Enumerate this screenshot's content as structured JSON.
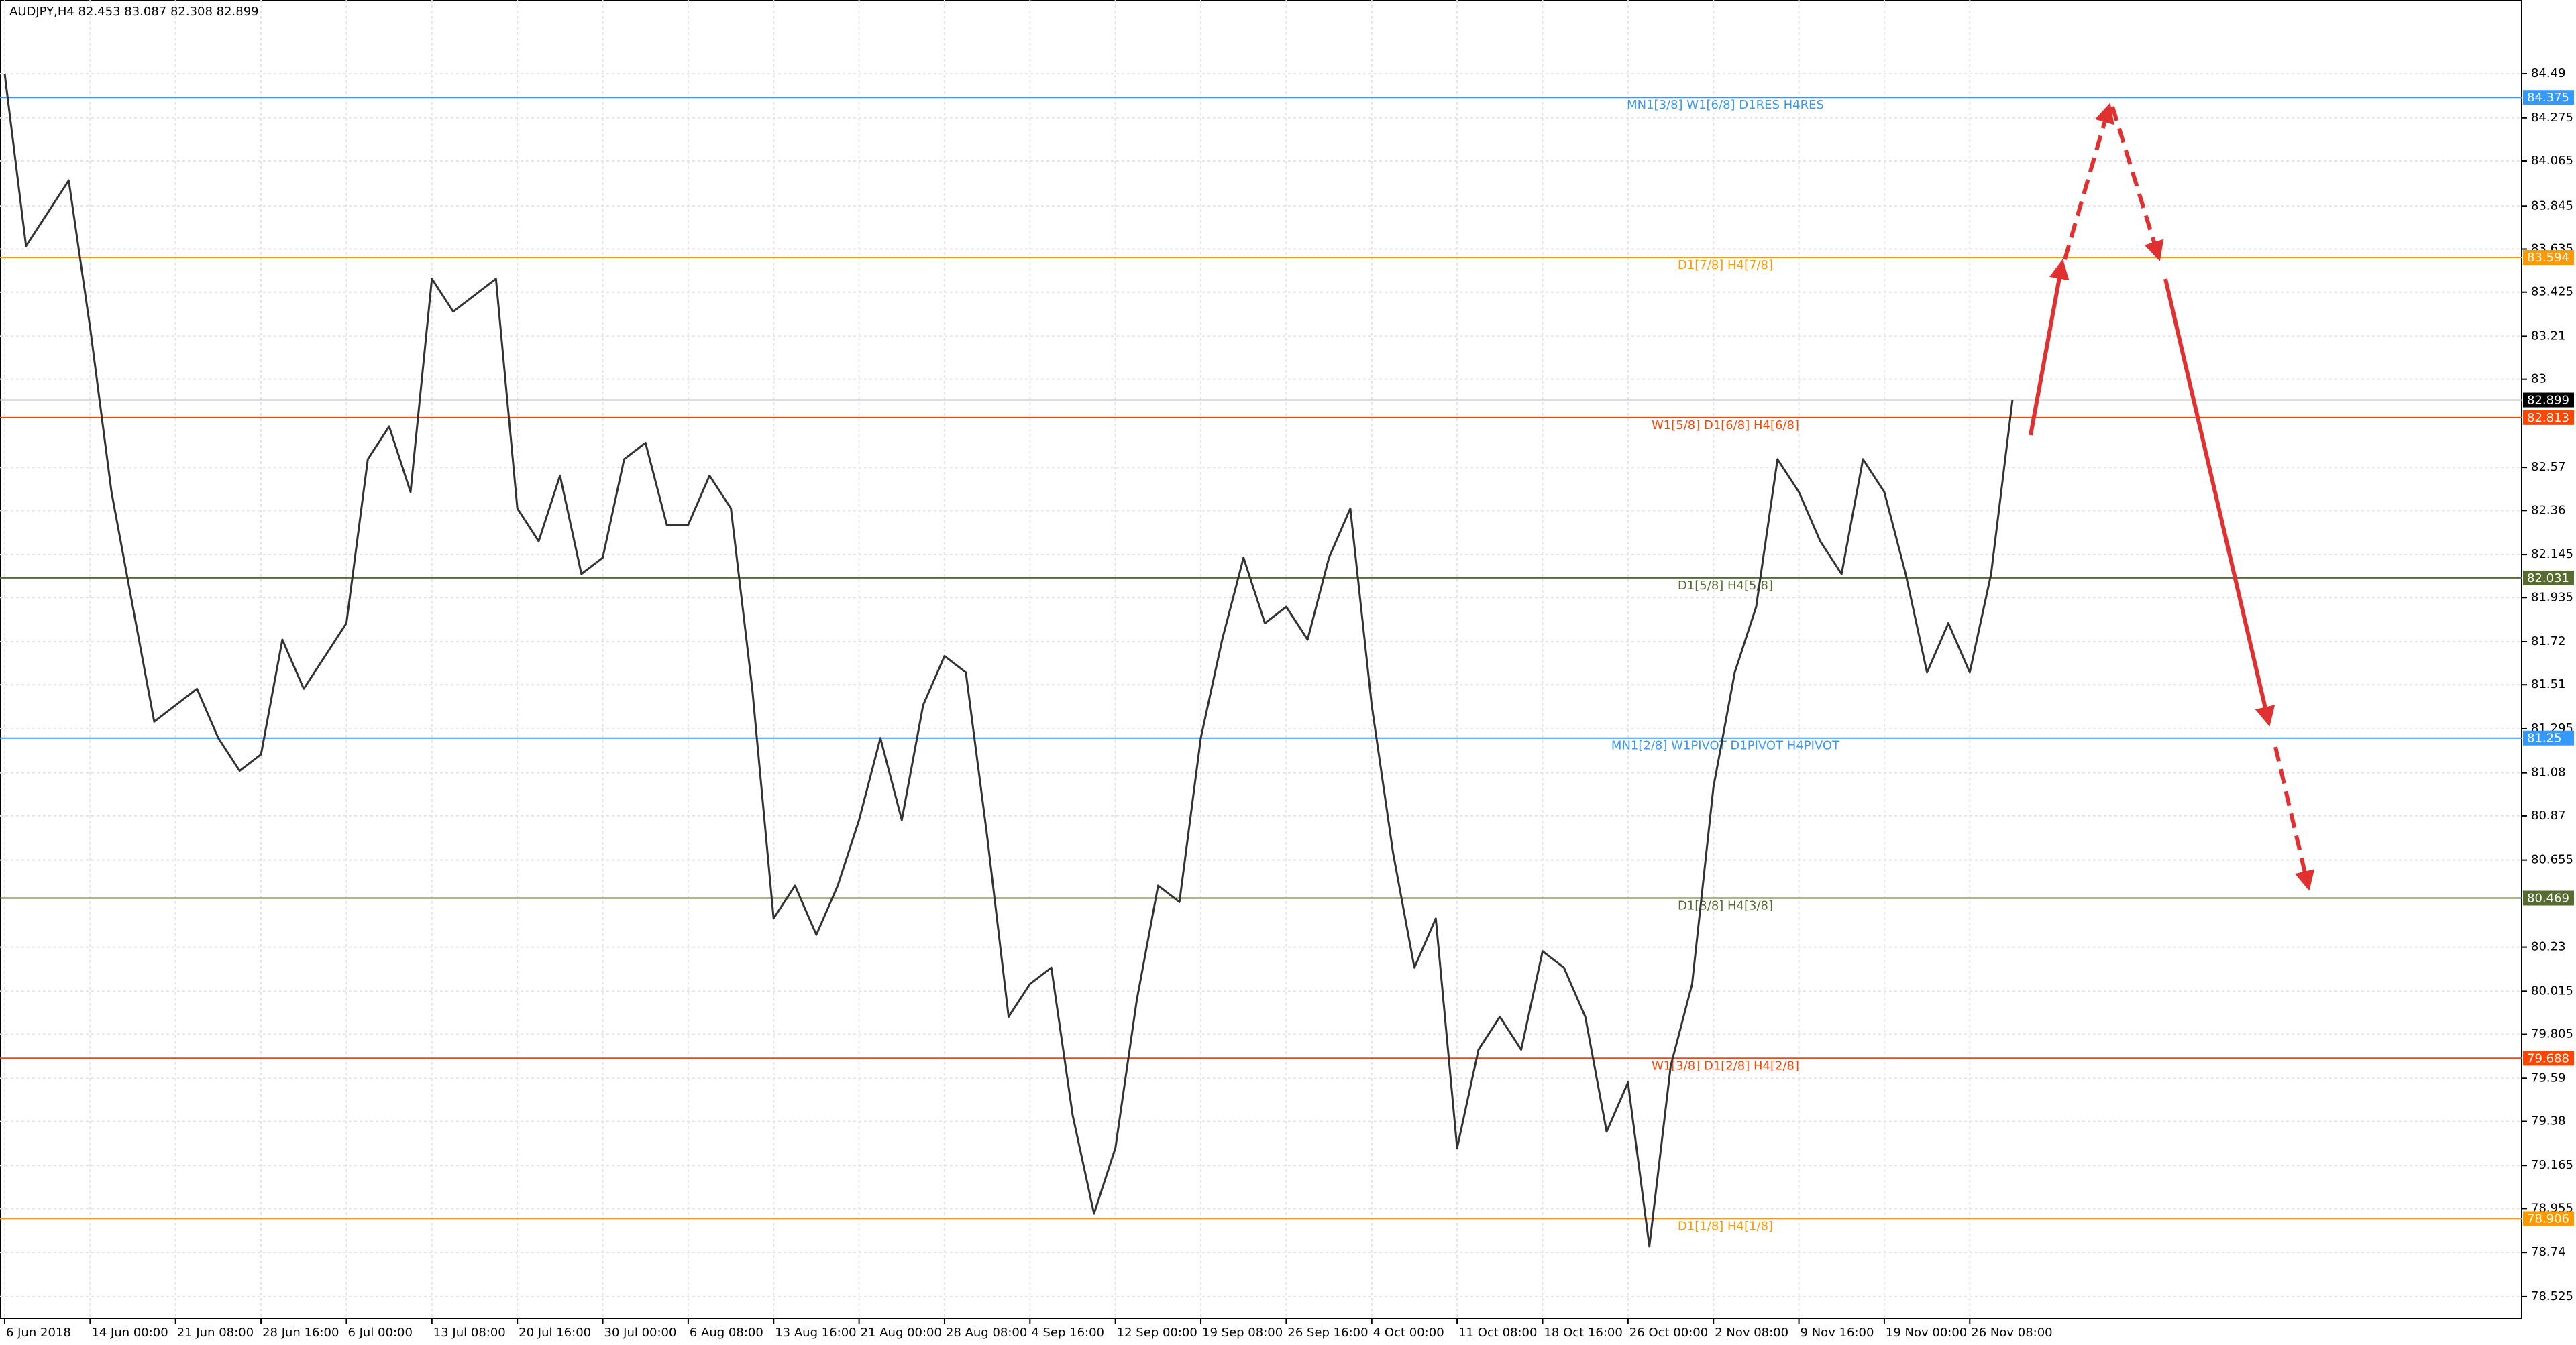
{
  "chart_data": {
    "type": "line",
    "title": "AUDJPY,H4  82.453 83.087 82.308 82.899",
    "categories": [
      "6 Jun 2018",
      null,
      null,
      null,
      "14 Jun 00:00",
      null,
      null,
      null,
      "21 Jun 08:00",
      null,
      null,
      null,
      "28 Jun 16:00",
      null,
      null,
      null,
      "6 Jul 00:00",
      null,
      null,
      null,
      "13 Jul 08:00",
      null,
      null,
      null,
      "20 Jul 16:00",
      null,
      null,
      null,
      "30 Jul 00:00",
      null,
      null,
      null,
      "6 Aug 08:00",
      null,
      null,
      null,
      "13 Aug 16:00",
      null,
      null,
      null,
      "21 Aug 00:00",
      null,
      null,
      null,
      "28 Aug 08:00",
      null,
      null,
      null,
      "4 Sep 16:00",
      null,
      null,
      null,
      "12 Sep 00:00",
      null,
      null,
      null,
      "19 Sep 08:00",
      null,
      null,
      null,
      "26 Sep 16:00",
      null,
      null,
      null,
      "4 Oct 00:00",
      null,
      null,
      null,
      "11 Oct 08:00",
      null,
      null,
      null,
      "18 Oct 16:00",
      null,
      null,
      null,
      "26 Oct 00:00",
      null,
      null,
      null,
      "2 Nov 08:00",
      null,
      null,
      null,
      "9 Nov 16:00",
      null,
      null,
      null,
      "19 Nov 00:00",
      null,
      null,
      null,
      "26 Nov 08:00",
      null,
      null
    ],
    "series": [
      {
        "name": "AUDJPY",
        "color": "#333333",
        "values": [
          84.49,
          83.65,
          83.81,
          83.97,
          83.25,
          82.45,
          81.89,
          81.33,
          81.41,
          81.49,
          81.25,
          81.09,
          81.17,
          81.73,
          81.49,
          81.65,
          81.81,
          82.61,
          82.77,
          82.45,
          83.49,
          83.33,
          83.41,
          83.49,
          82.37,
          82.21,
          82.53,
          82.05,
          82.13,
          82.61,
          82.69,
          82.29,
          82.29,
          82.53,
          82.37,
          81.49,
          80.37,
          80.53,
          80.29,
          80.53,
          80.85,
          81.25,
          80.85,
          81.41,
          81.65,
          81.57,
          80.77,
          79.89,
          80.05,
          80.13,
          79.41,
          78.93,
          79.25,
          79.97,
          80.53,
          80.45,
          81.25,
          81.73,
          82.13,
          81.81,
          81.89,
          81.73,
          82.13,
          82.37,
          81.41,
          80.69,
          80.13,
          80.37,
          79.25,
          79.73,
          79.89,
          79.73,
          80.21,
          80.13,
          79.89,
          79.33,
          79.57,
          78.77,
          79.65,
          80.05,
          81.01,
          81.57,
          81.89,
          82.61,
          82.45,
          82.21,
          82.05,
          82.61,
          82.45,
          82.05,
          81.57,
          81.81,
          81.57,
          82.05,
          82.9
        ]
      }
    ],
    "ylim": [
      78.42,
      84.85
    ],
    "yticks": [
      84.49,
      84.275,
      84.065,
      83.845,
      83.635,
      83.425,
      83.21,
      83.0,
      82.57,
      82.36,
      82.145,
      81.935,
      81.72,
      81.51,
      81.295,
      81.08,
      80.87,
      80.655,
      80.23,
      80.015,
      79.805,
      79.59,
      79.38,
      79.165,
      78.955,
      78.74,
      78.525
    ],
    "grid": true,
    "levels": [
      {
        "value": 84.375,
        "label": "MN1[3/8] W1[6/8] D1RES H4RES",
        "color": "#3399ff"
      },
      {
        "value": 83.594,
        "label": "D1[7/8] H4[7/8]",
        "color": "#ff9900"
      },
      {
        "value": 82.813,
        "label": "W1[5/8] D1[6/8] H4[6/8]",
        "color": "#ff4500"
      },
      {
        "value": 82.031,
        "label": "D1[5/8] H4[5/8]",
        "color": "#556b2f"
      },
      {
        "value": 81.25,
        "label": "MN1[2/8] W1PIVOT D1PIVOT H4PIVOT",
        "color": "#3399ff"
      },
      {
        "value": 80.469,
        "label": "D1[3/8] H4[3/8]",
        "color": "#556b2f"
      },
      {
        "value": 79.688,
        "label": "W1[3/8] D1[2/8] H4[2/8]",
        "color": "#ff4500"
      },
      {
        "value": 78.906,
        "label": "D1[1/8] H4[1/8]",
        "color": "#ff9900"
      }
    ],
    "last_price": 82.899
  }
}
